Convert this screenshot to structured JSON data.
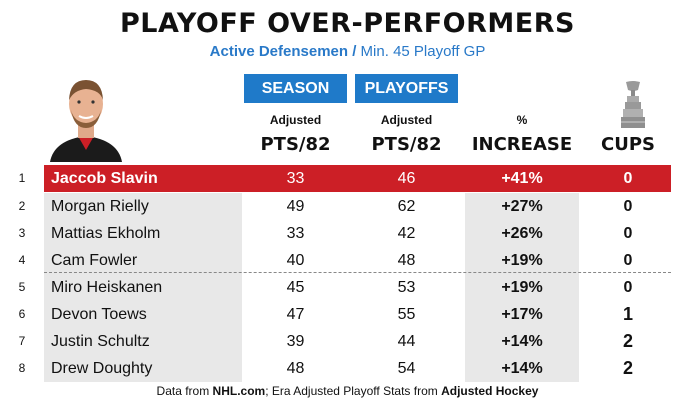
{
  "title": "PLAYOFF OVER-PERFORMERS",
  "subtitle": {
    "bold": "Active Defensemen /",
    "rest": " Min. 45 Playoff GP"
  },
  "tags": {
    "season": "SEASON",
    "playoffs": "PLAYOFFS"
  },
  "headers": {
    "season_small": "Adjusted",
    "season_large": "PTS/82",
    "playoff_small": "Adjusted",
    "playoff_large": "PTS/82",
    "pct_small": "%",
    "pct_large": "INCREASE",
    "cups_large": "CUPS"
  },
  "rows": [
    {
      "rank": "1",
      "name": "Jaccob Slavin",
      "season": "33",
      "playoff": "46",
      "pct": "+41%",
      "cups": "0"
    },
    {
      "rank": "2",
      "name": "Morgan Rielly",
      "season": "49",
      "playoff": "62",
      "pct": "+27%",
      "cups": "0"
    },
    {
      "rank": "3",
      "name": "Mattias Ekholm",
      "season": "33",
      "playoff": "42",
      "pct": "+26%",
      "cups": "0"
    },
    {
      "rank": "4",
      "name": "Cam Fowler",
      "season": "40",
      "playoff": "48",
      "pct": "+19%",
      "cups": "0"
    },
    {
      "rank": "5",
      "name": "Miro Heiskanen",
      "season": "45",
      "playoff": "53",
      "pct": "+19%",
      "cups": "0"
    },
    {
      "rank": "6",
      "name": "Devon Toews",
      "season": "47",
      "playoff": "55",
      "pct": "+17%",
      "cups": "1"
    },
    {
      "rank": "7",
      "name": "Justin Schultz",
      "season": "39",
      "playoff": "44",
      "pct": "+14%",
      "cups": "2"
    },
    {
      "rank": "8",
      "name": "Drew Doughty",
      "season": "48",
      "playoff": "54",
      "pct": "+14%",
      "cups": "2"
    }
  ],
  "footer": {
    "a": "Data from ",
    "b": "NHL.com",
    "c": "; Era Adjusted Playoff Stats from ",
    "d": "Adjusted Hockey"
  },
  "colors": {
    "highlight": "#cc1f26",
    "accent": "#1f7ac9",
    "shade": "#e8e8e8"
  },
  "icons": {
    "avatar": "player-headshot",
    "cup": "stanley-cup-icon"
  }
}
